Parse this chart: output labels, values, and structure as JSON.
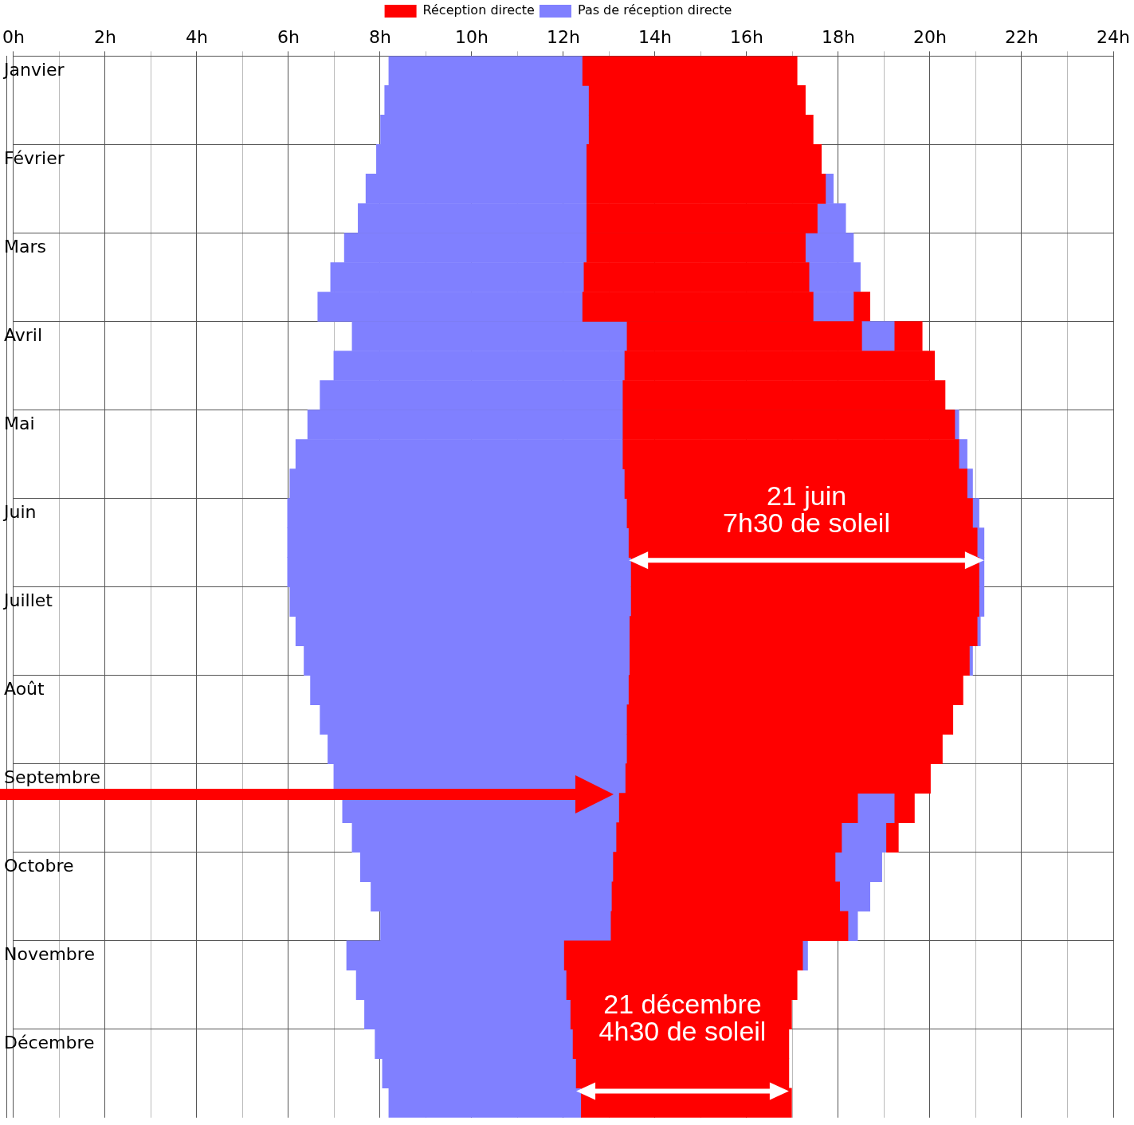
{
  "chart_data": {
    "type": "bar",
    "orientation": "horizontal",
    "categories": [
      "Janvier",
      null,
      null,
      "Février",
      null,
      null,
      "Mars",
      null,
      null,
      "Avril",
      null,
      null,
      "Mai",
      null,
      null,
      "Juin",
      null,
      null,
      "Juillet",
      null,
      null,
      "Août",
      null,
      null,
      "Septembre",
      null,
      null,
      "Octobre",
      null,
      null,
      "Novembre",
      null,
      null,
      "Décembre",
      null,
      null
    ],
    "series": [
      {
        "name": "Réception directe",
        "color": "#ff0000",
        "base": [
          12.42,
          12.56,
          12.56,
          12.51,
          12.51,
          12.51,
          12.51,
          12.45,
          12.42,
          13.39,
          13.34,
          13.3,
          13.3,
          13.3,
          13.34,
          13.39,
          13.43,
          13.48,
          13.48,
          13.45,
          13.45,
          13.43,
          13.39,
          13.39,
          13.36,
          13.22,
          13.16,
          13.09,
          13.06,
          13.04,
          12.02,
          12.07,
          12.16,
          12.21,
          12.28,
          12.39
        ],
        "values": [
          4.68,
          4.72,
          4.89,
          5.12,
          5.21,
          5.03,
          4.77,
          4.91,
          5.03,
          5.12,
          6.76,
          7.03,
          7.24,
          7.33,
          7.47,
          7.54,
          7.6,
          7.59,
          7.59,
          7.58,
          7.41,
          7.29,
          7.11,
          6.88,
          6.65,
          5.2,
          4.91,
          4.84,
          4.97,
          5.17,
          5.2,
          5.03,
          4.82,
          4.71,
          4.64,
          4.59
        ]
      },
      {
        "name": "Pas de réception directe",
        "color": "#8080ff",
        "base": [
          8.19,
          8.1,
          8.01,
          7.92,
          7.69,
          7.52,
          7.22,
          6.92,
          6.64,
          7.39,
          6.99,
          6.69,
          6.42,
          6.16,
          6.03,
          5.98,
          5.98,
          5.98,
          6.03,
          6.16,
          6.34,
          6.48,
          6.69,
          6.86,
          6.99,
          7.18,
          7.39,
          7.57,
          7.8,
          8.01,
          7.27,
          7.48,
          7.66,
          7.89,
          8.05,
          8.19
        ],
        "values": [
          4.23,
          4.46,
          4.55,
          4.59,
          4.82,
          4.99,
          5.29,
          5.53,
          5.78,
          6.0,
          6.35,
          6.61,
          6.88,
          7.14,
          7.31,
          7.41,
          7.45,
          7.5,
          7.45,
          7.29,
          7.11,
          6.95,
          6.7,
          6.53,
          6.37,
          6.04,
          5.77,
          5.52,
          5.26,
          5.03,
          4.75,
          4.59,
          4.5,
          4.32,
          4.23,
          4.2
        ]
      },
      {
        "color": "#8080ff",
        "base": [
          null,
          null,
          null,
          null,
          null,
          null,
          null,
          null,
          17.45,
          18.51,
          null,
          null,
          null,
          null,
          null,
          null,
          null,
          null,
          null,
          null,
          null,
          null,
          null,
          null,
          null,
          18.42,
          18.07,
          null,
          null,
          null,
          null,
          null,
          null,
          null,
          null,
          null
        ],
        "values": [
          null,
          null,
          null,
          null,
          null,
          null,
          null,
          null,
          0.88,
          0.71,
          null,
          null,
          null,
          null,
          null,
          null,
          null,
          null,
          null,
          null,
          null,
          null,
          null,
          null,
          null,
          0.8,
          0.97,
          null,
          null,
          null,
          null,
          null,
          null,
          null,
          null,
          null
        ]
      },
      {
        "color": "#ff0000",
        "base": [
          null,
          null,
          null,
          null,
          null,
          null,
          null,
          null,
          18.33,
          19.22,
          null,
          null,
          null,
          null,
          null,
          null,
          null,
          null,
          null,
          null,
          null,
          null,
          null,
          null,
          null,
          19.22,
          19.04,
          null,
          null,
          null,
          null,
          null,
          null,
          null,
          null,
          null
        ],
        "values": [
          null,
          null,
          null,
          null,
          null,
          null,
          null,
          null,
          0.36,
          0.61,
          null,
          null,
          null,
          null,
          null,
          null,
          null,
          null,
          null,
          null,
          null,
          null,
          null,
          null,
          null,
          0.44,
          0.27,
          null,
          null,
          null,
          null,
          null,
          null,
          null,
          null,
          null
        ]
      },
      {
        "color": "#8080ff",
        "base": [
          null,
          null,
          null,
          null,
          17.72,
          17.54,
          17.28,
          17.36,
          null,
          null,
          null,
          null,
          20.54,
          20.63,
          20.81,
          20.93,
          21.03,
          21.07,
          21.07,
          21.03,
          20.86,
          null,
          null,
          null,
          null,
          null,
          null,
          17.93,
          18.03,
          18.21,
          17.22,
          null,
          null,
          null,
          null,
          null
        ],
        "values": [
          null,
          null,
          null,
          null,
          0.17,
          0.62,
          1.05,
          1.12,
          null,
          null,
          null,
          null,
          0.09,
          0.18,
          0.12,
          0.14,
          0.15,
          0.11,
          0.11,
          0.07,
          0.07,
          null,
          null,
          null,
          null,
          null,
          null,
          1.02,
          0.66,
          0.21,
          0.11,
          null,
          null,
          null,
          null,
          null
        ]
      }
    ],
    "xlim": [
      0,
      24
    ],
    "xticks": [
      {
        "value": 0,
        "label": "0h"
      },
      {
        "value": 1,
        "label": null
      },
      {
        "value": 2,
        "label": "2h"
      },
      {
        "value": 3,
        "label": null
      },
      {
        "value": 4,
        "label": "4h"
      },
      {
        "value": 5,
        "label": null
      },
      {
        "value": 6,
        "label": "6h"
      },
      {
        "value": 7,
        "label": null
      },
      {
        "value": 8,
        "label": "8h"
      },
      {
        "value": 9,
        "label": null
      },
      {
        "value": 10,
        "label": "10h"
      },
      {
        "value": 11,
        "label": null
      },
      {
        "value": 12,
        "label": "12h"
      },
      {
        "value": 13,
        "label": null
      },
      {
        "value": 14,
        "label": "14h"
      },
      {
        "value": 15,
        "label": null
      },
      {
        "value": 16,
        "label": "16h"
      },
      {
        "value": 17,
        "label": null
      },
      {
        "value": 18,
        "label": "18h"
      },
      {
        "value": 19,
        "label": null
      },
      {
        "value": 20,
        "label": "20h"
      },
      {
        "value": 21,
        "label": null
      },
      {
        "value": 22,
        "label": "22h"
      },
      {
        "value": 23,
        "label": null
      },
      {
        "value": 24,
        "label": "24h"
      }
    ],
    "grid": true,
    "legend": "top",
    "annotations": [
      "21 juin\n7h30 de soleil",
      "21 décembre\n4h30 de soleil"
    ]
  }
}
